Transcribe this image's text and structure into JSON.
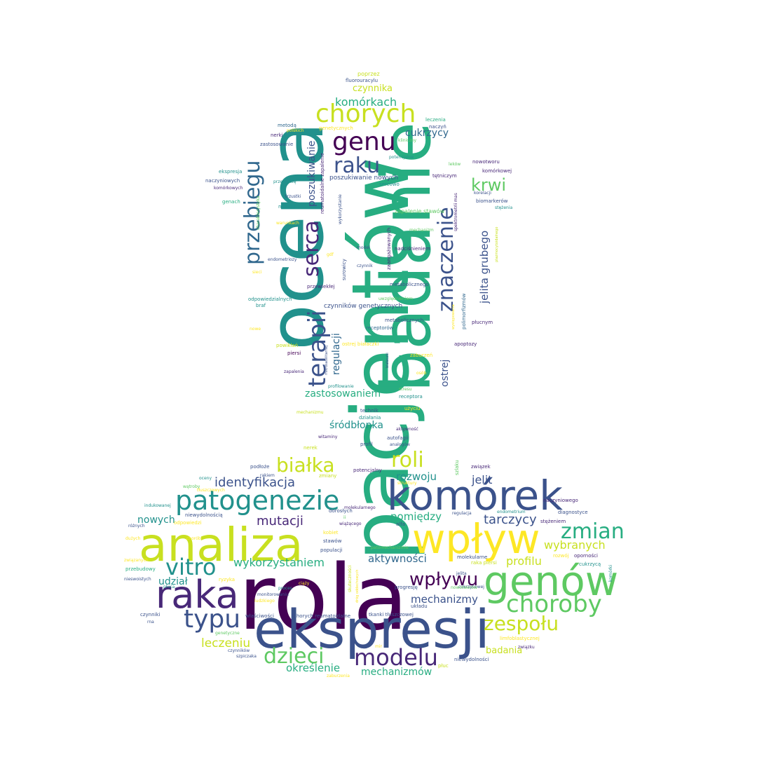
{
  "words": {
    "rola": "rola",
    "pacjentow": "pacjentów",
    "ocena": "ocena",
    "badanie": "badanie",
    "ekspresji": "ekspresji",
    "analiza": "analiza",
    "wplyw": "wpływ",
    "komorek": "komórek",
    "genow": "genów",
    "raka": "raka",
    "chorych": "chorych",
    "genu": "genu",
    "raku": "raku",
    "terapii": "terapii",
    "serca": "serca",
    "znaczenie": "znaczenie",
    "przebiegu": "przebiegu",
    "patogenezie": "patogenezie",
    "modelu": "modelu",
    "choroby": "choroby",
    "typu": "typu",
    "dzieci": "dzieci",
    "vitro": "vitro",
    "zmian": "zmian",
    "wplywu": "wpływu",
    "zespolu": "zespołu",
    "bialka": "białka",
    "roli": "roli",
    "krwi": "krwi",
    "komorkach": "komórkach",
    "czynnika": "czynnika",
    "mutacji": "mutacji",
    "identyfikacji": "identyfikacja",
    "wykorzystaniem": "wykorzystaniem",
    "leczeniu": "leczeniu",
    "okreslenie": "określenie",
    "mechanizmow": "mechanizmów",
    "mechanizmy": "mechanizmy",
    "tarczycy": "tarczycy",
    "wybranych": "wybranych",
    "profilu": "profilu",
    "aktywnosci": "aktywności",
    "pomiedzy": "pomiędzy",
    "rozwoju": "rozwoju",
    "jelit": "jelit",
    "zastosowaniem": "zastosowaniem",
    "srodblonka": "śródbłonka",
    "regulacji": "regulacji",
    "ostrej": "ostrej",
    "jelita_grubego": "jelita grubego",
    "poszukiwanie": "poszukiwanie",
    "cukrzycy": "cukrzycy",
    "udzial": "udział",
    "nowych": "nowych",
    "badania": "badania",
    "poprzez": "poprzez",
    "fluorouracylu": "fluorouracylu",
    "leczenia": "leczenia",
    "genetycznych": "genetycznych",
    "naczyn": "naczyń",
    "metoda": "metodą",
    "polskich": "polskich",
    "nerki": "nerki",
    "zastosowanie": "zastosowanie",
    "kliniczny": "kliniczny",
    "nowotworu": "nowotworu",
    "potencjalne": "potencjalne",
    "lekow": "leków",
    "ekspresja": "ekspresja",
    "naczyniowych": "naczyniowych",
    "przewleklej": "przewlekłą",
    "komorkowych": "komórkowych",
    "trzustki": "trzustki",
    "tetniczym": "tętniczym",
    "komorkowej": "komórkowej",
    "genach": "genach",
    "mikrorna": "mikrorna",
    "biomarkerow": "biomarkerów",
    "stezenia": "stężenia",
    "poszukiwanie_nowych": "poszukiwanie nowych",
    "sercowo": "sercowo",
    "reumatoidalne": "reumatoidalne zapalenie",
    "warunkach": "warunkach",
    "wykorzystanie": "wykorzystanie",
    "zapalenie_stawow": "zapalenie stawów",
    "mechanizm": "mechanizm",
    "spektrometrii": "spektrometrii mas",
    "endometriozy": "endometriozy",
    "gdf": "gdf",
    "model": "model",
    "nadcisnieniem": "nadciśnieniem",
    "czynnik": "czynnik",
    "surowicy": "surowicy",
    "zaangazowanych": "zaangażowanych",
    "sieci": "sieci",
    "przewleklej2": "przewlekłej",
    "metabolicznego": "metabolicznego",
    "odpowiedzialnych": "odpowiedzialnych",
    "braf": "braf",
    "uwzglednieniem": "uwzględnieniem",
    "czynnikow_genetycznych": "czynników genetycznych",
    "metabolicznych": "metabolicznych",
    "polimorfizmow": "polimorfizmów",
    "plucnym": "płucnym",
    "nowe": "nowe",
    "receptorow": "receptorów",
    "powiklan": "powikłań",
    "ostrej_bialaczki": "ostrej białaczki",
    "apoptozy": "apoptozy",
    "piersi": "piersi",
    "zaburzen": "zaburzeń",
    "zapalenia": "zapalenia",
    "osob": "osób",
    "profilowanie": "profilowanie",
    "stresu": "stresu",
    "receptora": "receptora",
    "technik": "technik",
    "uzyciu": "użyciu",
    "mechanizmu": "mechanizmu",
    "dzialania": "działania",
    "aktywnosc": "aktywność",
    "witaminy": "witaminy",
    "autofagii": "autofagii",
    "profil": "profil",
    "analogow": "analogów",
    "nerek": "nerek",
    "potencjalny": "potencjalny",
    "szlaku": "szlaku",
    "zwiazek": "związek",
    "podloze": "podłoże",
    "rakiem": "rakiem",
    "zmiany": "zmiany",
    "struktury": "struktury",
    "oceny": "oceny",
    "watroby": "wątroby",
    "tluszczowych": "tłuszczowych",
    "naczyniowego": "naczyniowego",
    "indukowanej": "indukowanej",
    "molekularnego": "molekularnego",
    "niewydolnoscia": "niewydolnością",
    "doroslych": "dorosłych",
    "regulacja": "regulacja",
    "endometrium": "endometrium",
    "diagnostyce": "diagnostyce",
    "roznych": "różnych",
    "odpowiedzi": "odpowiedzi",
    "ii": "ii",
    "wiazacego": "wiążącego",
    "alfa": "alfa",
    "stezeniem": "stężeniem",
    "duzych": "dużych",
    "chorob": "chorób",
    "kobiet": "kobiet",
    "stawow": "stawów",
    "populacji": "populacji",
    "patomechanizmie": "patomechanizmie",
    "molekularne": "molekularne",
    "rozwoj": "rozwój",
    "opornosci": "oporności",
    "zwiazanych": "związanych",
    "raka_piersi": "raka piersi",
    "cukrzyca": "cukrzycą",
    "komorki": "komórki",
    "przebudowy": "przebudowy",
    "nieswoistych": "nieswoistych",
    "ryzyka": "ryzyka",
    "ciazy": "ciąży",
    "skutecznosci": "skuteczności",
    "drog_oddechowych": "dróg oddechowych",
    "jelita": "jelita",
    "progresje": "progresję",
    "cukrzycowej": "cukrzycowej",
    "ludzkiego": "ludzkiego",
    "czynniki": "czynniki",
    "wlasciwosci": "właściwości",
    "chorych_reum": "chorych reumatoidalne",
    "tkanki_tluszczowej": "tkanki tłuszczowej",
    "ukladu": "układu",
    "limfoblastycznej": "limfoblastycznej",
    "rna": "rna",
    "genetyczne": "genetyczne",
    "czynnikow": "czynników",
    "szpiczaka": "szpiczaka",
    "mir": "mir",
    "zwiazku": "związku",
    "niewydolnosci": "niewydolności",
    "pluc": "płuc",
    "zaburzenia": "zaburzenia",
    "pluca": "płuca",
    "proces": "proces",
    "monitorowaniu": "monitorowaniu",
    "nowotworow": "nowotworów",
    "korelacji": "korelacji",
    "plazmocytoidalnego": "plazmocytoidalnego",
    "charakterystyka": "charakterystyka",
    "wystepowania": "występowania",
    "bialaczki": "białaczki",
    "mikrosatelitarnej": "mikrosatelitarnej"
  }
}
